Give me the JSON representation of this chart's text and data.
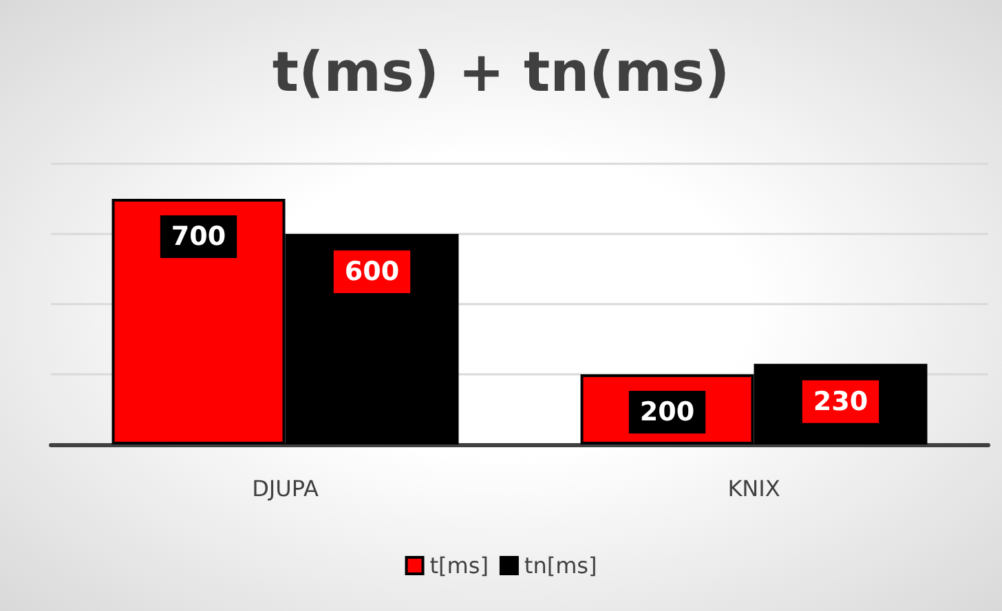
{
  "chart_data": {
    "type": "bar",
    "title": "t(ms) + tn(ms)",
    "categories": [
      "DJUPA",
      "KNIX"
    ],
    "series": [
      {
        "name": "t[ms]",
        "color": "#ff0000",
        "values": [
          700,
          200
        ]
      },
      {
        "name": "tn[ms]",
        "color": "#000000",
        "values": [
          600,
          230
        ]
      }
    ],
    "ylim": [
      0,
      800
    ],
    "yticks": [
      {
        "value": 0,
        "label": null
      },
      {
        "value": 200,
        "label": null
      },
      {
        "value": 400,
        "label": null
      },
      {
        "value": 600,
        "label": null
      },
      {
        "value": 800,
        "label": null
      }
    ],
    "tick_labels": "x",
    "grid": "y",
    "legend": "bottom",
    "data_labels": true
  }
}
